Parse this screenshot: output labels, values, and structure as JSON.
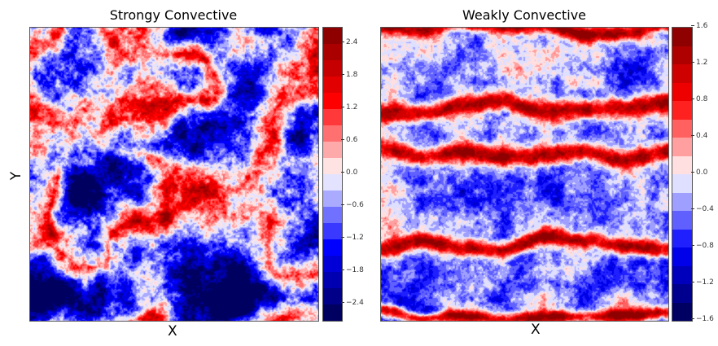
{
  "chart_data": [
    {
      "type": "heatmap",
      "title": "Strongy Convective",
      "xlabel": "X",
      "ylabel": "Y",
      "colormap": "seismic",
      "vmin": -2.7,
      "vmax": 2.7,
      "levels": 18,
      "colorbar_ticks": [
        "2.4",
        "1.8",
        "1.2",
        "0.6",
        "0.0",
        "−0.6",
        "−1.2",
        "−1.8",
        "−2.4"
      ],
      "colorbar_tick_values": [
        2.4,
        1.8,
        1.2,
        0.6,
        0.0,
        -0.6,
        -1.2,
        -1.8,
        -2.4
      ]
    },
    {
      "type": "heatmap",
      "title": "Weakly Convective",
      "xlabel": "X",
      "ylabel": "",
      "colormap": "seismic",
      "vmin": -1.6,
      "vmax": 1.6,
      "levels": 16,
      "colorbar_ticks": [
        "1.6",
        "1.2",
        "0.8",
        "0.4",
        "0.0",
        "−0.4",
        "−0.8",
        "−1.2",
        "−1.6"
      ],
      "colorbar_tick_values": [
        1.6,
        1.2,
        0.8,
        0.4,
        0.0,
        -0.4,
        -0.8,
        -1.2,
        -1.6
      ]
    }
  ]
}
